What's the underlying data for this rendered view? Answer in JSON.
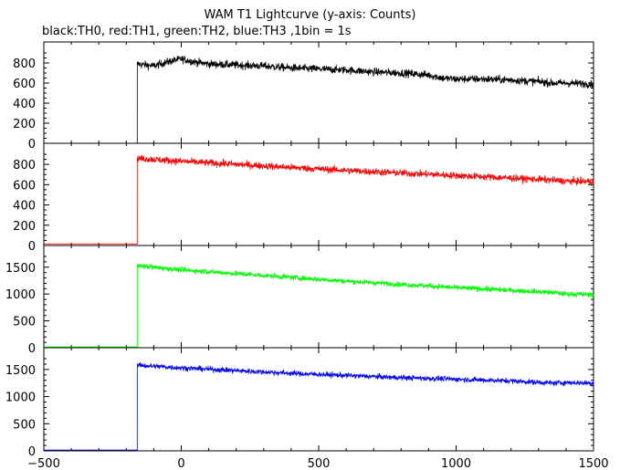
{
  "title": "WAM T1 Lightcurve (y-axis: Counts)",
  "subtitle": "black:TH0, red:TH1, green:TH2, blue:TH3 ,1bin = 1s",
  "chart_data": {
    "type": "line",
    "title": "WAM T1 Lightcurve (y-axis: Counts)",
    "subtitle": "black:TH0, red:TH1, green:TH2, blue:TH3 ,1bin = 1s",
    "xlim": [
      -500,
      1500
    ],
    "x_ticks": [
      -500,
      0,
      500,
      1000,
      1500
    ],
    "x_tick_labels": [
      "−500",
      "0",
      "500",
      "1000",
      "1500"
    ],
    "grid": false,
    "panels": [
      {
        "color": "#000000",
        "ylim": [
          0,
          900
        ],
        "y_ticks": [
          0,
          200,
          400,
          600,
          800
        ],
        "onset_x": -160,
        "pre_value": 0,
        "noise": 28,
        "series_points": [
          [
            -160,
            790
          ],
          [
            -100,
            770
          ],
          [
            -50,
            810
          ],
          [
            0,
            840
          ],
          [
            50,
            810
          ],
          [
            100,
            790
          ],
          [
            200,
            780
          ],
          [
            300,
            770
          ],
          [
            400,
            750
          ],
          [
            500,
            740
          ],
          [
            600,
            730
          ],
          [
            700,
            710
          ],
          [
            800,
            700
          ],
          [
            900,
            680
          ],
          [
            950,
            650
          ],
          [
            1000,
            640
          ],
          [
            1100,
            640
          ],
          [
            1200,
            630
          ],
          [
            1300,
            615
          ],
          [
            1350,
            600
          ],
          [
            1400,
            600
          ],
          [
            1500,
            590
          ]
        ]
      },
      {
        "color": "#ff0000",
        "ylim": [
          0,
          900
        ],
        "y_ticks": [
          0,
          200,
          400,
          600,
          800
        ],
        "onset_x": -160,
        "pre_value": 15,
        "noise": 25,
        "series_points": [
          [
            -160,
            860
          ],
          [
            0,
            830
          ],
          [
            200,
            800
          ],
          [
            400,
            770
          ],
          [
            600,
            740
          ],
          [
            800,
            715
          ],
          [
            1000,
            690
          ],
          [
            1200,
            665
          ],
          [
            1350,
            645
          ],
          [
            1400,
            635
          ],
          [
            1500,
            630
          ]
        ]
      },
      {
        "color": "#00ff00",
        "ylim": [
          0,
          1700
        ],
        "y_ticks": [
          0,
          500,
          1000,
          1500
        ],
        "onset_x": -160,
        "pre_value": 15,
        "noise": 35,
        "series_points": [
          [
            -160,
            1530
          ],
          [
            -100,
            1500
          ],
          [
            0,
            1450
          ],
          [
            200,
            1380
          ],
          [
            400,
            1310
          ],
          [
            600,
            1240
          ],
          [
            800,
            1180
          ],
          [
            1000,
            1120
          ],
          [
            1200,
            1070
          ],
          [
            1350,
            1030
          ],
          [
            1400,
            1000
          ],
          [
            1500,
            990
          ]
        ]
      },
      {
        "color": "#0000ff",
        "ylim": [
          0,
          1700
        ],
        "y_ticks": [
          0,
          500,
          1000,
          1500
        ],
        "onset_x": -160,
        "pre_value": 15,
        "noise": 35,
        "series_points": [
          [
            -160,
            1580
          ],
          [
            0,
            1530
          ],
          [
            200,
            1480
          ],
          [
            400,
            1430
          ],
          [
            600,
            1390
          ],
          [
            800,
            1350
          ],
          [
            1000,
            1320
          ],
          [
            1200,
            1290
          ],
          [
            1350,
            1250
          ],
          [
            1400,
            1260
          ],
          [
            1500,
            1250
          ]
        ]
      }
    ]
  }
}
